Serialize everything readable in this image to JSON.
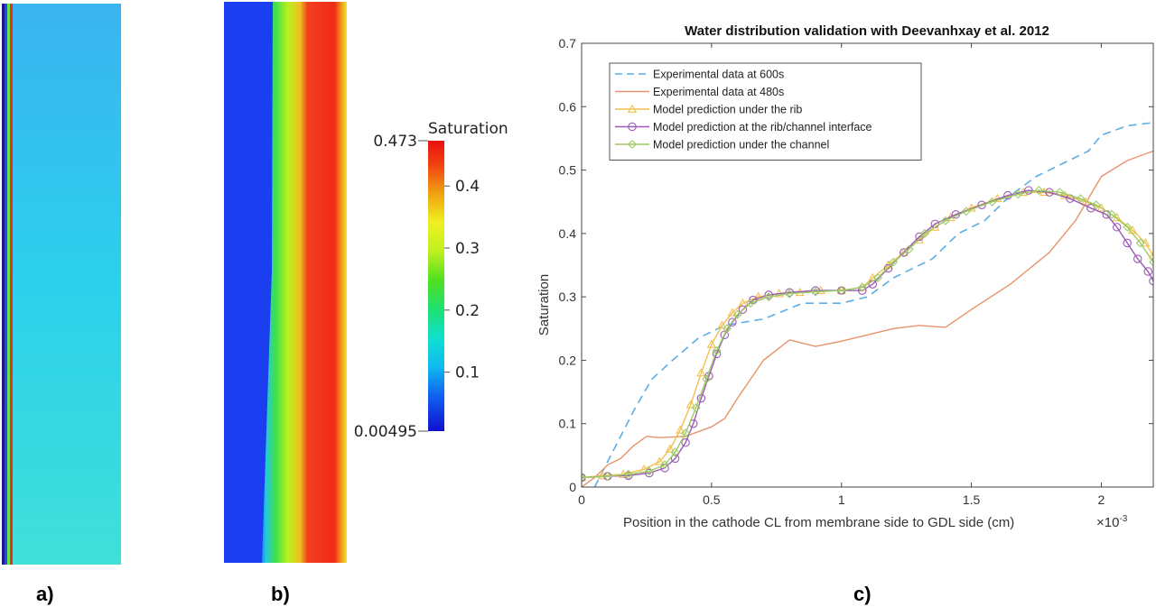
{
  "panels": {
    "a": {
      "label": "a)"
    },
    "b": {
      "label": "b)"
    },
    "c": {
      "label": "c)"
    }
  },
  "colorbar": {
    "title": "Saturation",
    "min_label": "0.00495",
    "max_label": "0.473",
    "min": 0.00495,
    "max": 0.473,
    "ticks": [
      {
        "value": 0.1,
        "label": "0.1"
      },
      {
        "value": 0.2,
        "label": "0.2"
      },
      {
        "value": 0.3,
        "label": "0.3"
      },
      {
        "value": 0.4,
        "label": "0.4"
      }
    ]
  },
  "colors": {
    "exp600": "#5aaee6",
    "exp480": "#e8936a",
    "rib": "#f2c14e",
    "interface": "#9b59b6",
    "channel": "#9ccc65"
  },
  "chart_data": {
    "type": "line",
    "title": "Water distribution validation with Deevanhxay et al. 2012",
    "xlabel": "Position in the cathode CL from membrane side to GDL side (cm)",
    "x_exponent_label": "×10",
    "x_exponent_power": "-3",
    "ylabel": "Saturation",
    "xlim": [
      0,
      2.2
    ],
    "ylim": [
      0,
      0.7
    ],
    "x_ticks": [
      {
        "value": 0,
        "label": "0"
      },
      {
        "value": 0.5,
        "label": "0.5"
      },
      {
        "value": 1,
        "label": "1"
      },
      {
        "value": 1.5,
        "label": "1.5"
      },
      {
        "value": 2,
        "label": "2"
      }
    ],
    "y_ticks": [
      {
        "value": 0,
        "label": "0"
      },
      {
        "value": 0.1,
        "label": "0.1"
      },
      {
        "value": 0.2,
        "label": "0.2"
      },
      {
        "value": 0.3,
        "label": "0.3"
      },
      {
        "value": 0.4,
        "label": "0.4"
      },
      {
        "value": 0.5,
        "label": "0.5"
      },
      {
        "value": 0.6,
        "label": "0.6"
      },
      {
        "value": 0.7,
        "label": "0.7"
      }
    ],
    "legend_position": "top-left",
    "series": [
      {
        "name": "Experimental data at 600s",
        "style": "dashed",
        "marker": "none",
        "color_key": "exp600",
        "points": [
          [
            0.05,
            0.0
          ],
          [
            0.1,
            0.04
          ],
          [
            0.15,
            0.08
          ],
          [
            0.2,
            0.12
          ],
          [
            0.27,
            0.17
          ],
          [
            0.35,
            0.2
          ],
          [
            0.45,
            0.235
          ],
          [
            0.55,
            0.255
          ],
          [
            0.7,
            0.265
          ],
          [
            0.85,
            0.29
          ],
          [
            1.0,
            0.29
          ],
          [
            1.1,
            0.3
          ],
          [
            1.2,
            0.33
          ],
          [
            1.35,
            0.36
          ],
          [
            1.45,
            0.4
          ],
          [
            1.55,
            0.42
          ],
          [
            1.65,
            0.46
          ],
          [
            1.75,
            0.49
          ],
          [
            1.85,
            0.51
          ],
          [
            1.95,
            0.53
          ],
          [
            2.0,
            0.555
          ],
          [
            2.1,
            0.57
          ],
          [
            2.2,
            0.575
          ]
        ]
      },
      {
        "name": "Experimental data at 480s",
        "style": "solid",
        "marker": "none",
        "color_key": "exp480",
        "points": [
          [
            0.0,
            0.0
          ],
          [
            0.05,
            0.015
          ],
          [
            0.1,
            0.035
          ],
          [
            0.15,
            0.045
          ],
          [
            0.2,
            0.065
          ],
          [
            0.25,
            0.08
          ],
          [
            0.3,
            0.078
          ],
          [
            0.4,
            0.08
          ],
          [
            0.5,
            0.095
          ],
          [
            0.55,
            0.108
          ],
          [
            0.6,
            0.14
          ],
          [
            0.7,
            0.2
          ],
          [
            0.8,
            0.232
          ],
          [
            0.9,
            0.222
          ],
          [
            1.0,
            0.23
          ],
          [
            1.1,
            0.24
          ],
          [
            1.2,
            0.25
          ],
          [
            1.3,
            0.255
          ],
          [
            1.4,
            0.252
          ],
          [
            1.5,
            0.28
          ],
          [
            1.65,
            0.32
          ],
          [
            1.8,
            0.37
          ],
          [
            1.9,
            0.42
          ],
          [
            2.0,
            0.49
          ],
          [
            2.1,
            0.515
          ],
          [
            2.2,
            0.53
          ]
        ]
      },
      {
        "name": "Model prediction under the rib",
        "style": "solid",
        "marker": "triangle",
        "color_key": "rib",
        "points": [
          [
            0.0,
            0.015
          ],
          [
            0.08,
            0.018
          ],
          [
            0.16,
            0.02
          ],
          [
            0.24,
            0.028
          ],
          [
            0.3,
            0.04
          ],
          [
            0.34,
            0.06
          ],
          [
            0.38,
            0.09
          ],
          [
            0.42,
            0.13
          ],
          [
            0.46,
            0.18
          ],
          [
            0.5,
            0.225
          ],
          [
            0.54,
            0.255
          ],
          [
            0.58,
            0.275
          ],
          [
            0.62,
            0.29
          ],
          [
            0.68,
            0.3
          ],
          [
            0.76,
            0.305
          ],
          [
            0.84,
            0.307
          ],
          [
            0.92,
            0.31
          ],
          [
            1.0,
            0.31
          ],
          [
            1.08,
            0.315
          ],
          [
            1.12,
            0.33
          ],
          [
            1.18,
            0.35
          ],
          [
            1.24,
            0.37
          ],
          [
            1.3,
            0.39
          ],
          [
            1.36,
            0.41
          ],
          [
            1.42,
            0.425
          ],
          [
            1.5,
            0.44
          ],
          [
            1.6,
            0.455
          ],
          [
            1.7,
            0.465
          ],
          [
            1.78,
            0.465
          ],
          [
            1.86,
            0.46
          ],
          [
            1.94,
            0.45
          ],
          [
            2.0,
            0.44
          ],
          [
            2.06,
            0.425
          ],
          [
            2.12,
            0.405
          ],
          [
            2.17,
            0.385
          ],
          [
            2.2,
            0.365
          ]
        ]
      },
      {
        "name": "Model prediction at the rib/channel interface",
        "style": "solid",
        "marker": "circle",
        "color_key": "interface",
        "points": [
          [
            0.0,
            0.015
          ],
          [
            0.1,
            0.017
          ],
          [
            0.18,
            0.018
          ],
          [
            0.26,
            0.022
          ],
          [
            0.32,
            0.03
          ],
          [
            0.36,
            0.045
          ],
          [
            0.4,
            0.07
          ],
          [
            0.43,
            0.1
          ],
          [
            0.46,
            0.14
          ],
          [
            0.49,
            0.175
          ],
          [
            0.52,
            0.21
          ],
          [
            0.55,
            0.24
          ],
          [
            0.58,
            0.26
          ],
          [
            0.62,
            0.28
          ],
          [
            0.66,
            0.295
          ],
          [
            0.72,
            0.303
          ],
          [
            0.8,
            0.307
          ],
          [
            0.9,
            0.31
          ],
          [
            1.0,
            0.31
          ],
          [
            1.08,
            0.31
          ],
          [
            1.12,
            0.32
          ],
          [
            1.18,
            0.345
          ],
          [
            1.24,
            0.37
          ],
          [
            1.3,
            0.395
          ],
          [
            1.36,
            0.415
          ],
          [
            1.44,
            0.43
          ],
          [
            1.54,
            0.445
          ],
          [
            1.64,
            0.46
          ],
          [
            1.72,
            0.468
          ],
          [
            1.8,
            0.465
          ],
          [
            1.88,
            0.455
          ],
          [
            1.96,
            0.44
          ],
          [
            2.02,
            0.43
          ],
          [
            2.06,
            0.41
          ],
          [
            2.1,
            0.385
          ],
          [
            2.14,
            0.36
          ],
          [
            2.18,
            0.34
          ],
          [
            2.2,
            0.325
          ]
        ]
      },
      {
        "name": "Model prediction under the channel",
        "style": "solid",
        "marker": "diamond",
        "color_key": "channel",
        "points": [
          [
            0.0,
            0.015
          ],
          [
            0.1,
            0.017
          ],
          [
            0.18,
            0.02
          ],
          [
            0.26,
            0.025
          ],
          [
            0.32,
            0.035
          ],
          [
            0.36,
            0.055
          ],
          [
            0.4,
            0.085
          ],
          [
            0.44,
            0.125
          ],
          [
            0.48,
            0.17
          ],
          [
            0.52,
            0.215
          ],
          [
            0.56,
            0.25
          ],
          [
            0.6,
            0.272
          ],
          [
            0.65,
            0.29
          ],
          [
            0.72,
            0.3
          ],
          [
            0.8,
            0.305
          ],
          [
            0.9,
            0.308
          ],
          [
            1.0,
            0.31
          ],
          [
            1.08,
            0.315
          ],
          [
            1.14,
            0.33
          ],
          [
            1.2,
            0.355
          ],
          [
            1.26,
            0.375
          ],
          [
            1.32,
            0.4
          ],
          [
            1.4,
            0.42
          ],
          [
            1.48,
            0.435
          ],
          [
            1.58,
            0.45
          ],
          [
            1.68,
            0.462
          ],
          [
            1.76,
            0.468
          ],
          [
            1.84,
            0.465
          ],
          [
            1.92,
            0.455
          ],
          [
            1.98,
            0.445
          ],
          [
            2.04,
            0.43
          ],
          [
            2.1,
            0.41
          ],
          [
            2.15,
            0.385
          ],
          [
            2.2,
            0.355
          ]
        ]
      }
    ]
  }
}
